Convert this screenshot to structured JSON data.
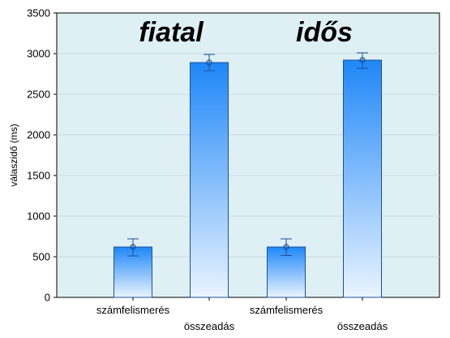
{
  "chart_data": {
    "type": "bar",
    "ylabel": "válaszidő (ms)",
    "ylim": [
      0,
      3500
    ],
    "yticks": [
      0,
      500,
      1000,
      1500,
      2000,
      2500,
      3000,
      3500
    ],
    "grid": true,
    "groups": [
      {
        "label": "fiatal",
        "bars": [
          {
            "category": "számfelismerés",
            "value": 620,
            "error_low": 510,
            "error_high": 720
          },
          {
            "category": "összeadás",
            "value": 2890,
            "error_low": 2790,
            "error_high": 2990
          }
        ]
      },
      {
        "label": "idős",
        "bars": [
          {
            "category": "számfelismerés",
            "value": 620,
            "error_low": 515,
            "error_high": 720
          },
          {
            "category": "összeadás",
            "value": 2920,
            "error_low": 2820,
            "error_high": 3010
          }
        ]
      }
    ],
    "colors": {
      "plot_background": "#dff0f5",
      "bar_top": "#1f87f8",
      "bar_bottom": "#eaf4ff",
      "bar_outline": "#1a4f9a",
      "gridline": "#c9d9de"
    }
  }
}
